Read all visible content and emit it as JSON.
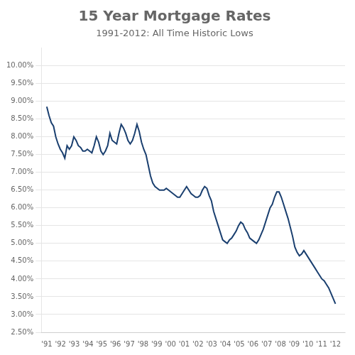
{
  "chart_data": {
    "type": "line",
    "title": "15 Year Mortgage Rates",
    "subtitle": "1991-2012: All Time Historic Lows",
    "color": "#1a3f6f",
    "x": [
      1991,
      1991.1640625,
      1991.328125,
      1991.4921875,
      1991.65625,
      1991.8203125,
      1991.984375,
      1992.1484375,
      1992.3125,
      1992.4765625,
      1992.640625,
      1992.8046875,
      1992.96875,
      1993.1328125,
      1993.296875,
      1993.4609375,
      1993.625,
      1993.7890625,
      1993.953125,
      1994.1171875,
      1994.28125,
      1994.4453125,
      1994.609375,
      1994.7734375,
      1994.9375,
      1995.1015625,
      1995.265625,
      1995.4296875,
      1995.59375,
      1995.7578125,
      1995.921875,
      1996.0859375,
      1996.25,
      1996.4140625,
      1996.578125,
      1996.7421875,
      1996.90625,
      1997.0703125,
      1997.234375,
      1997.3984375,
      1997.5625,
      1997.7265625,
      1997.890625,
      1998.0546875,
      1998.21875,
      1998.3828125,
      1998.546875,
      1998.7109375,
      1998.875,
      1999.0390625,
      1999.203125,
      1999.3671875,
      1999.53125,
      1999.6953125,
      1999.859375,
      2000.0234375,
      2000.1875,
      2000.3515625,
      2000.515625,
      2000.6796875,
      2000.84375,
      2001.0078125,
      2001.171875,
      2001.3359375,
      2001.5,
      2001.6640625,
      2001.828125,
      2001.9921875,
      2002.15625,
      2002.3203125,
      2002.484375,
      2002.6484375,
      2002.8125,
      2002.9765625,
      2003.140625,
      2003.3046875,
      2003.46875,
      2003.6328125,
      2003.796875,
      2003.9609375,
      2004.125,
      2004.2890625,
      2004.453125,
      2004.6171875,
      2004.78125,
      2004.9453125,
      2005.109375,
      2005.2734375,
      2005.4375,
      2005.6015625,
      2005.765625,
      2005.9296875,
      2006.09375,
      2006.2578125,
      2006.421875,
      2006.5859375,
      2006.75,
      2006.9140625,
      2007.078125,
      2007.2421875,
      2007.40625,
      2007.5703125,
      2007.734375,
      2007.8984375,
      2008.0625,
      2008.2265625,
      2008.390625,
      2008.5546875,
      2008.71875,
      2008.8828125,
      2009.046875,
      2009.2109375,
      2009.375,
      2009.5390625,
      2009.703125,
      2009.8671875,
      2010.03125,
      2010.1953125,
      2010.359375,
      2010.5234375,
      2010.6875,
      2010.8515625,
      2011.015625,
      2011.1796875,
      2011.34375,
      2011.5078125,
      2011.671875,
      2011.8359375,
      2012
    ],
    "values": [
      8.85,
      8.6,
      8.4,
      8.3,
      8.0,
      7.8,
      7.65,
      7.55,
      7.4,
      7.75,
      7.65,
      7.75,
      8.0,
      7.9,
      7.75,
      7.7,
      7.6,
      7.6,
      7.65,
      7.6,
      7.55,
      7.75,
      8.0,
      7.85,
      7.6,
      7.5,
      7.6,
      7.75,
      8.1,
      7.9,
      7.85,
      7.8,
      8.1,
      8.35,
      8.25,
      8.1,
      7.9,
      7.8,
      7.9,
      8.1,
      8.35,
      8.15,
      7.85,
      7.65,
      7.5,
      7.2,
      6.9,
      6.7,
      6.6,
      6.55,
      6.5,
      6.5,
      6.5,
      6.55,
      6.5,
      6.45,
      6.4,
      6.35,
      6.3,
      6.3,
      6.4,
      6.5,
      6.6,
      6.5,
      6.4,
      6.35,
      6.3,
      6.3,
      6.35,
      6.5,
      6.6,
      6.55,
      6.35,
      6.2,
      5.9,
      5.7,
      5.5,
      5.3,
      5.1,
      5.05,
      5.0,
      5.1,
      5.15,
      5.25,
      5.35,
      5.5,
      5.6,
      5.55,
      5.4,
      5.3,
      5.15,
      5.1,
      5.05,
      5.0,
      5.1,
      5.25,
      5.4,
      5.6,
      5.8,
      6.0,
      6.1,
      6.3,
      6.45,
      6.45,
      6.3,
      6.1,
      5.9,
      5.7,
      5.45,
      5.2,
      4.9,
      4.75,
      4.65,
      4.7,
      4.8,
      4.7,
      4.6,
      4.5,
      4.4,
      4.3,
      4.2,
      4.1,
      4.0,
      3.95,
      3.85,
      3.75,
      3.6,
      3.45,
      3.3
    ],
    "xlim": [
      1990.6,
      2012.7
    ],
    "xticks": [
      {
        "value": 1991,
        "label": "'91"
      },
      {
        "value": 1992,
        "label": "'92"
      },
      {
        "value": 1993,
        "label": "'93"
      },
      {
        "value": 1994,
        "label": "'94"
      },
      {
        "value": 1995,
        "label": "'95"
      },
      {
        "value": 1996,
        "label": "'96"
      },
      {
        "value": 1997,
        "label": "'97"
      },
      {
        "value": 1998,
        "label": "'98"
      },
      {
        "value": 1999,
        "label": "'99"
      },
      {
        "value": 2000,
        "label": "'00"
      },
      {
        "value": 2001,
        "label": "'01"
      },
      {
        "value": 2002,
        "label": "'02"
      },
      {
        "value": 2003,
        "label": "'03"
      },
      {
        "value": 2004,
        "label": "'04"
      },
      {
        "value": 2005,
        "label": "'05"
      },
      {
        "value": 2006,
        "label": "'06"
      },
      {
        "value": 2007,
        "label": "'07"
      },
      {
        "value": 2008,
        "label": "'08"
      },
      {
        "value": 2009,
        "label": "'09"
      },
      {
        "value": 2010,
        "label": "'10"
      },
      {
        "value": 2011,
        "label": "'11"
      },
      {
        "value": 2012,
        "label": "'12"
      }
    ],
    "ylim": [
      2.5,
      10.5
    ],
    "yticks": [
      {
        "value": 2.5,
        "label": "2.50%"
      },
      {
        "value": 3.0,
        "label": "3.00%"
      },
      {
        "value": 3.5,
        "label": "3.50%"
      },
      {
        "value": 4.0,
        "label": "4.00%"
      },
      {
        "value": 4.5,
        "label": "4.50%"
      },
      {
        "value": 5.0,
        "label": "5.00%"
      },
      {
        "value": 5.5,
        "label": "5.50%"
      },
      {
        "value": 6.0,
        "label": "6.00%"
      },
      {
        "value": 6.5,
        "label": "6.50%"
      },
      {
        "value": 7.0,
        "label": "7.00%"
      },
      {
        "value": 7.5,
        "label": "7.50%"
      },
      {
        "value": 8.0,
        "label": "8.00%"
      },
      {
        "value": 8.5,
        "label": "8.50%"
      },
      {
        "value": 9.0,
        "label": "9.00%"
      },
      {
        "value": 9.5,
        "label": "9.50%"
      },
      {
        "value": 10.0,
        "label": "10.00%"
      }
    ],
    "grid": "y"
  }
}
